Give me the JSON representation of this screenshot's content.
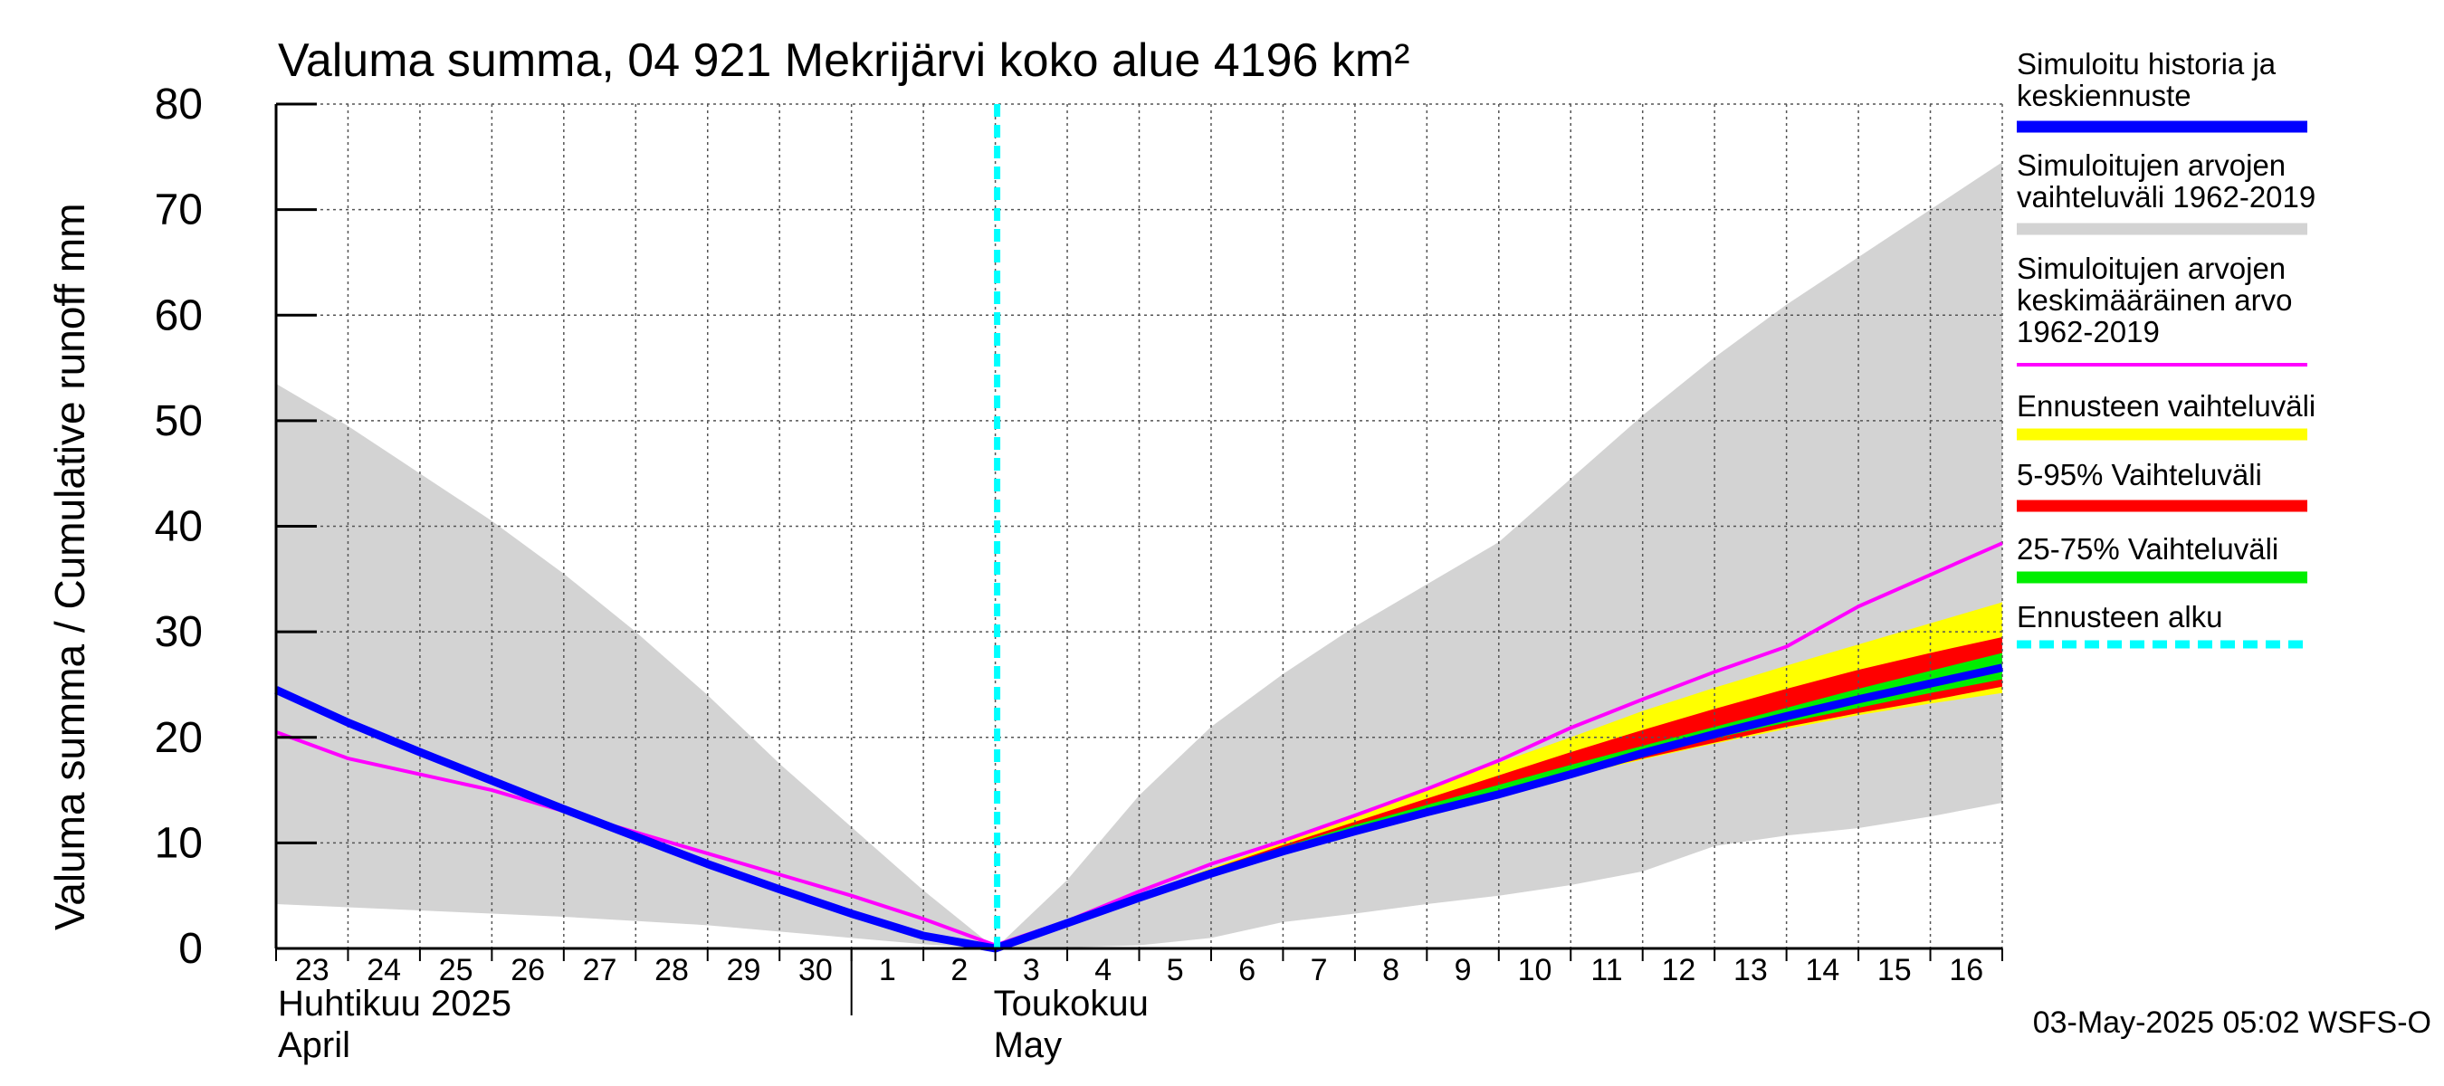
{
  "chart_data": {
    "type": "line",
    "title": "Valuma summa, 04 921 Mekrijärvi koko alue 4196 km²",
    "ylabel": "Valuma summa / Cumulative runoff    mm",
    "ylim": [
      0,
      80
    ],
    "yticks": [
      0,
      10,
      20,
      30,
      40,
      50,
      60,
      70,
      80
    ],
    "grid": true,
    "legend_position": "right",
    "x_tick_labels": [
      "23",
      "24",
      "25",
      "26",
      "27",
      "28",
      "29",
      "30",
      "1",
      "2",
      "3",
      "4",
      "5",
      "6",
      "7",
      "8",
      "9",
      "10",
      "11",
      "12",
      "13",
      "14",
      "15",
      "16"
    ],
    "month_labels": [
      {
        "fi": "Huhtikuu  2025",
        "en": "April"
      },
      {
        "fi": "Toukokuu",
        "en": "May"
      }
    ],
    "forecast_start": "3",
    "x_dates": [
      "2025-04-23",
      "2025-04-24",
      "2025-04-25",
      "2025-04-26",
      "2025-04-27",
      "2025-04-28",
      "2025-04-29",
      "2025-04-30",
      "2025-05-01",
      "2025-05-02",
      "2025-05-03",
      "2025-05-04",
      "2025-05-05",
      "2025-05-06",
      "2025-05-07",
      "2025-05-08",
      "2025-05-09",
      "2025-05-10",
      "2025-05-11",
      "2025-05-12",
      "2025-05-13",
      "2025-05-14",
      "2025-05-15",
      "2025-05-16",
      "2025-05-17"
    ],
    "series": [
      {
        "name": "Simuloitujen arvojen vaihteluväli 1962-2019",
        "kind": "band",
        "color": "#d3d3d3",
        "lower": [
          4.2,
          3.9,
          3.6,
          3.3,
          3.0,
          2.6,
          2.2,
          1.6,
          1.0,
          0.4,
          0,
          0.1,
          0.3,
          1.0,
          2.5,
          3.3,
          4.2,
          5.0,
          6.0,
          7.3,
          9.7,
          10.7,
          11.4,
          12.5,
          13.8
        ],
        "upper": [
          53.5,
          49.5,
          45.0,
          40.5,
          35.5,
          30.0,
          24.0,
          17.5,
          11.5,
          5.5,
          0,
          6.5,
          14.5,
          21.0,
          26.0,
          30.5,
          34.5,
          38.5,
          44.5,
          50.5,
          56.0,
          61.0,
          65.5,
          70.0,
          74.5
        ]
      },
      {
        "name": "Ennusteen vaihteluväli",
        "kind": "band",
        "color": "#ffff00",
        "lower": [
          null,
          null,
          null,
          null,
          null,
          null,
          null,
          null,
          null,
          null,
          0,
          2.5,
          5.0,
          7.3,
          9.3,
          11.2,
          12.9,
          14.5,
          16.3,
          17.9,
          19.4,
          20.8,
          22.1,
          23.2,
          24.2
        ],
        "upper": [
          null,
          null,
          null,
          null,
          null,
          null,
          null,
          null,
          null,
          null,
          0,
          2.6,
          5.1,
          7.6,
          10.1,
          12.6,
          15.0,
          17.6,
          20.0,
          22.5,
          24.7,
          26.8,
          28.8,
          30.8,
          32.8
        ]
      },
      {
        "name": "5-95% Vaihteluväli",
        "kind": "band",
        "color": "#ff0000",
        "lower": [
          null,
          null,
          null,
          null,
          null,
          null,
          null,
          null,
          null,
          null,
          0,
          2.5,
          5.0,
          7.3,
          9.3,
          11.3,
          13.0,
          14.6,
          16.4,
          18.0,
          19.5,
          21.0,
          22.3,
          23.5,
          24.8
        ],
        "upper": [
          null,
          null,
          null,
          null,
          null,
          null,
          null,
          null,
          null,
          null,
          0,
          2.6,
          5.1,
          7.5,
          9.8,
          12.0,
          14.2,
          16.4,
          18.6,
          20.7,
          22.7,
          24.6,
          26.4,
          28.0,
          29.5
        ]
      },
      {
        "name": "25-75% Vaihteluväli",
        "kind": "band",
        "color": "#00ee00",
        "lower": [
          null,
          null,
          null,
          null,
          null,
          null,
          null,
          null,
          null,
          null,
          0,
          2.5,
          5.0,
          7.3,
          9.4,
          11.4,
          13.2,
          14.9,
          16.7,
          18.3,
          19.9,
          21.4,
          22.8,
          24.2,
          25.5
        ],
        "upper": [
          null,
          null,
          null,
          null,
          null,
          null,
          null,
          null,
          null,
          null,
          0,
          2.6,
          5.1,
          7.5,
          9.6,
          11.7,
          13.6,
          15.5,
          17.4,
          19.2,
          21.0,
          22.8,
          24.6,
          26.3,
          28.0
        ]
      },
      {
        "name": "Simuloitujen arvojen keskimääräinen arvo 1962-2019",
        "kind": "line",
        "color": "#ff00ff",
        "values": [
          20.5,
          18.0,
          16.5,
          15.0,
          13.0,
          11.0,
          9.0,
          7.0,
          5.0,
          2.8,
          0.3,
          2.6,
          5.4,
          8.0,
          10.2,
          12.6,
          15.1,
          17.8,
          20.9,
          23.6,
          26.2,
          28.6,
          32.4,
          35.4,
          38.4
        ]
      },
      {
        "name": "Simuloitu historia ja keskiennuste",
        "kind": "line",
        "color": "#0000ff",
        "values": [
          24.5,
          21.4,
          18.6,
          15.9,
          13.2,
          10.6,
          8.0,
          5.6,
          3.3,
          1.2,
          0,
          2.4,
          4.8,
          7.1,
          9.2,
          11.1,
          12.9,
          14.6,
          16.5,
          18.5,
          20.3,
          22.0,
          23.6,
          25.1,
          26.6
        ]
      }
    ]
  },
  "legend": [
    {
      "lines": [
        "Simuloitu historia ja",
        "keskiennuste"
      ],
      "color": "#0000ff",
      "style": "solid"
    },
    {
      "lines": [
        "Simuloitujen arvojen",
        "vaihteluväli 1962-2019"
      ],
      "color": "#d3d3d3",
      "style": "solid"
    },
    {
      "lines": [
        "Simuloitujen arvojen",
        "keskimääräinen arvo",
        "   1962-2019"
      ],
      "color": "#ff00ff",
      "style": "thin"
    },
    {
      "lines": [
        "Ennusteen vaihteluväli"
      ],
      "color": "#ffff00",
      "style": "solid"
    },
    {
      "lines": [
        "5-95% Vaihteluväli"
      ],
      "color": "#ff0000",
      "style": "solid"
    },
    {
      "lines": [
        "25-75% Vaihteluväli"
      ],
      "color": "#00ee00",
      "style": "solid"
    },
    {
      "lines": [
        "Ennusteen alku"
      ],
      "color": "#00ffff",
      "style": "dashed"
    }
  ],
  "footer": "03-May-2025 05:02 WSFS-O"
}
